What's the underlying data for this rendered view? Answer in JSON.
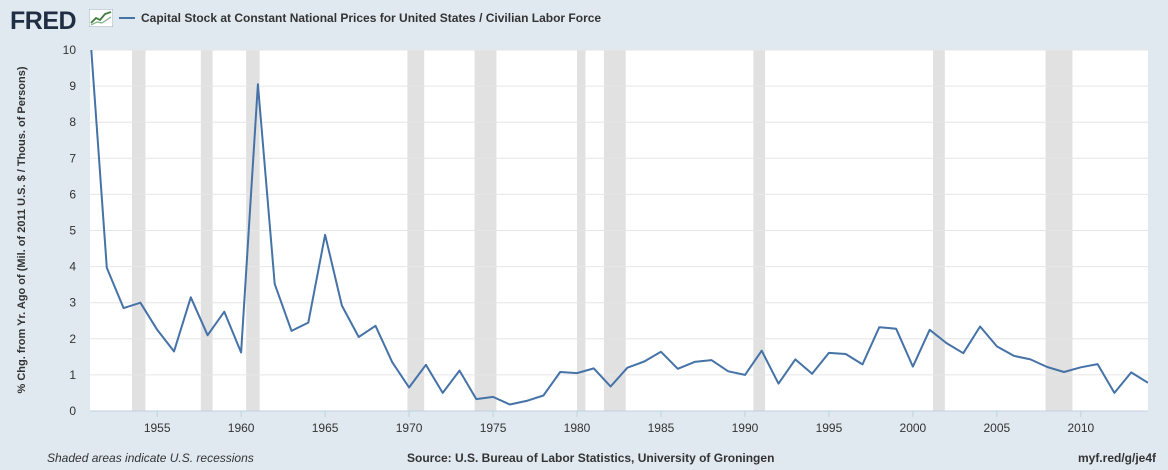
{
  "header": {
    "logo_text": "FRED",
    "logo_icon": "fred-chart-icon",
    "legend_label": "Capital Stock at Constant National Prices for United States / Civilian Labor Force"
  },
  "footer": {
    "recession_note": "Shaded areas indicate U.S. recessions",
    "source": "Source: U.S. Bureau of Labor Statistics, University of Groningen",
    "url": "myf.red/g/je4f"
  },
  "colors": {
    "background": "#e1e9f0",
    "plot_background": "#ffffff",
    "series": "#4572a7",
    "recession": "#e1e1e1"
  },
  "chart_data": {
    "type": "line",
    "ylabel": "% Chg. from Yr. Ago of (Mil. of 2011 U.S. $ / Thous. of Persons)",
    "xlabel": "",
    "ylim": [
      0,
      10
    ],
    "xlim": [
      1951,
      2014
    ],
    "yticks": [
      0,
      1,
      2,
      3,
      4,
      5,
      6,
      7,
      8,
      9,
      10
    ],
    "xticks": [
      1955,
      1960,
      1965,
      1970,
      1975,
      1980,
      1985,
      1990,
      1995,
      2000,
      2005,
      2010
    ],
    "grid": true,
    "recessions": [
      [
        1953.5,
        1954.3
      ],
      [
        1957.6,
        1958.3
      ],
      [
        1960.3,
        1961.1
      ],
      [
        1969.9,
        1970.9
      ],
      [
        1973.9,
        1975.2
      ],
      [
        1980.0,
        1980.5
      ],
      [
        1981.6,
        1982.9
      ],
      [
        1990.5,
        1991.2
      ],
      [
        2001.2,
        2001.9
      ],
      [
        2007.9,
        2009.5
      ]
    ],
    "series": [
      {
        "name": "Capital Stock at Constant National Prices for United States / Civilian Labor Force",
        "x": [
          1951,
          1952,
          1953,
          1954,
          1955,
          1956,
          1957,
          1958,
          1959,
          1960,
          1961,
          1962,
          1963,
          1964,
          1965,
          1966,
          1967,
          1968,
          1969,
          1970,
          1971,
          1972,
          1973,
          1974,
          1975,
          1976,
          1977,
          1978,
          1979,
          1980,
          1981,
          1982,
          1983,
          1984,
          1985,
          1986,
          1987,
          1988,
          1989,
          1990,
          1991,
          1992,
          1993,
          1994,
          1995,
          1996,
          1997,
          1998,
          1999,
          2000,
          2001,
          2002,
          2003,
          2004,
          2005,
          2006,
          2007,
          2008,
          2009,
          2010,
          2011,
          2012,
          2013,
          2014
        ],
        "values": [
          10.5,
          3.97,
          2.85,
          3.0,
          2.25,
          1.65,
          3.15,
          2.1,
          2.75,
          1.62,
          9.05,
          3.52,
          2.22,
          2.45,
          4.88,
          2.92,
          2.05,
          2.36,
          1.35,
          0.65,
          1.28,
          0.5,
          1.12,
          0.33,
          0.39,
          0.18,
          0.28,
          0.43,
          1.08,
          1.05,
          1.18,
          0.68,
          1.2,
          1.37,
          1.64,
          1.17,
          1.36,
          1.41,
          1.1,
          1.0,
          1.67,
          0.76,
          1.43,
          1.03,
          1.61,
          1.58,
          1.29,
          2.32,
          2.28,
          1.23,
          2.25,
          1.88,
          1.6,
          2.34,
          1.79,
          1.53,
          1.43,
          1.22,
          1.08,
          1.21,
          1.3,
          0.5,
          1.07,
          0.78
        ]
      }
    ]
  }
}
